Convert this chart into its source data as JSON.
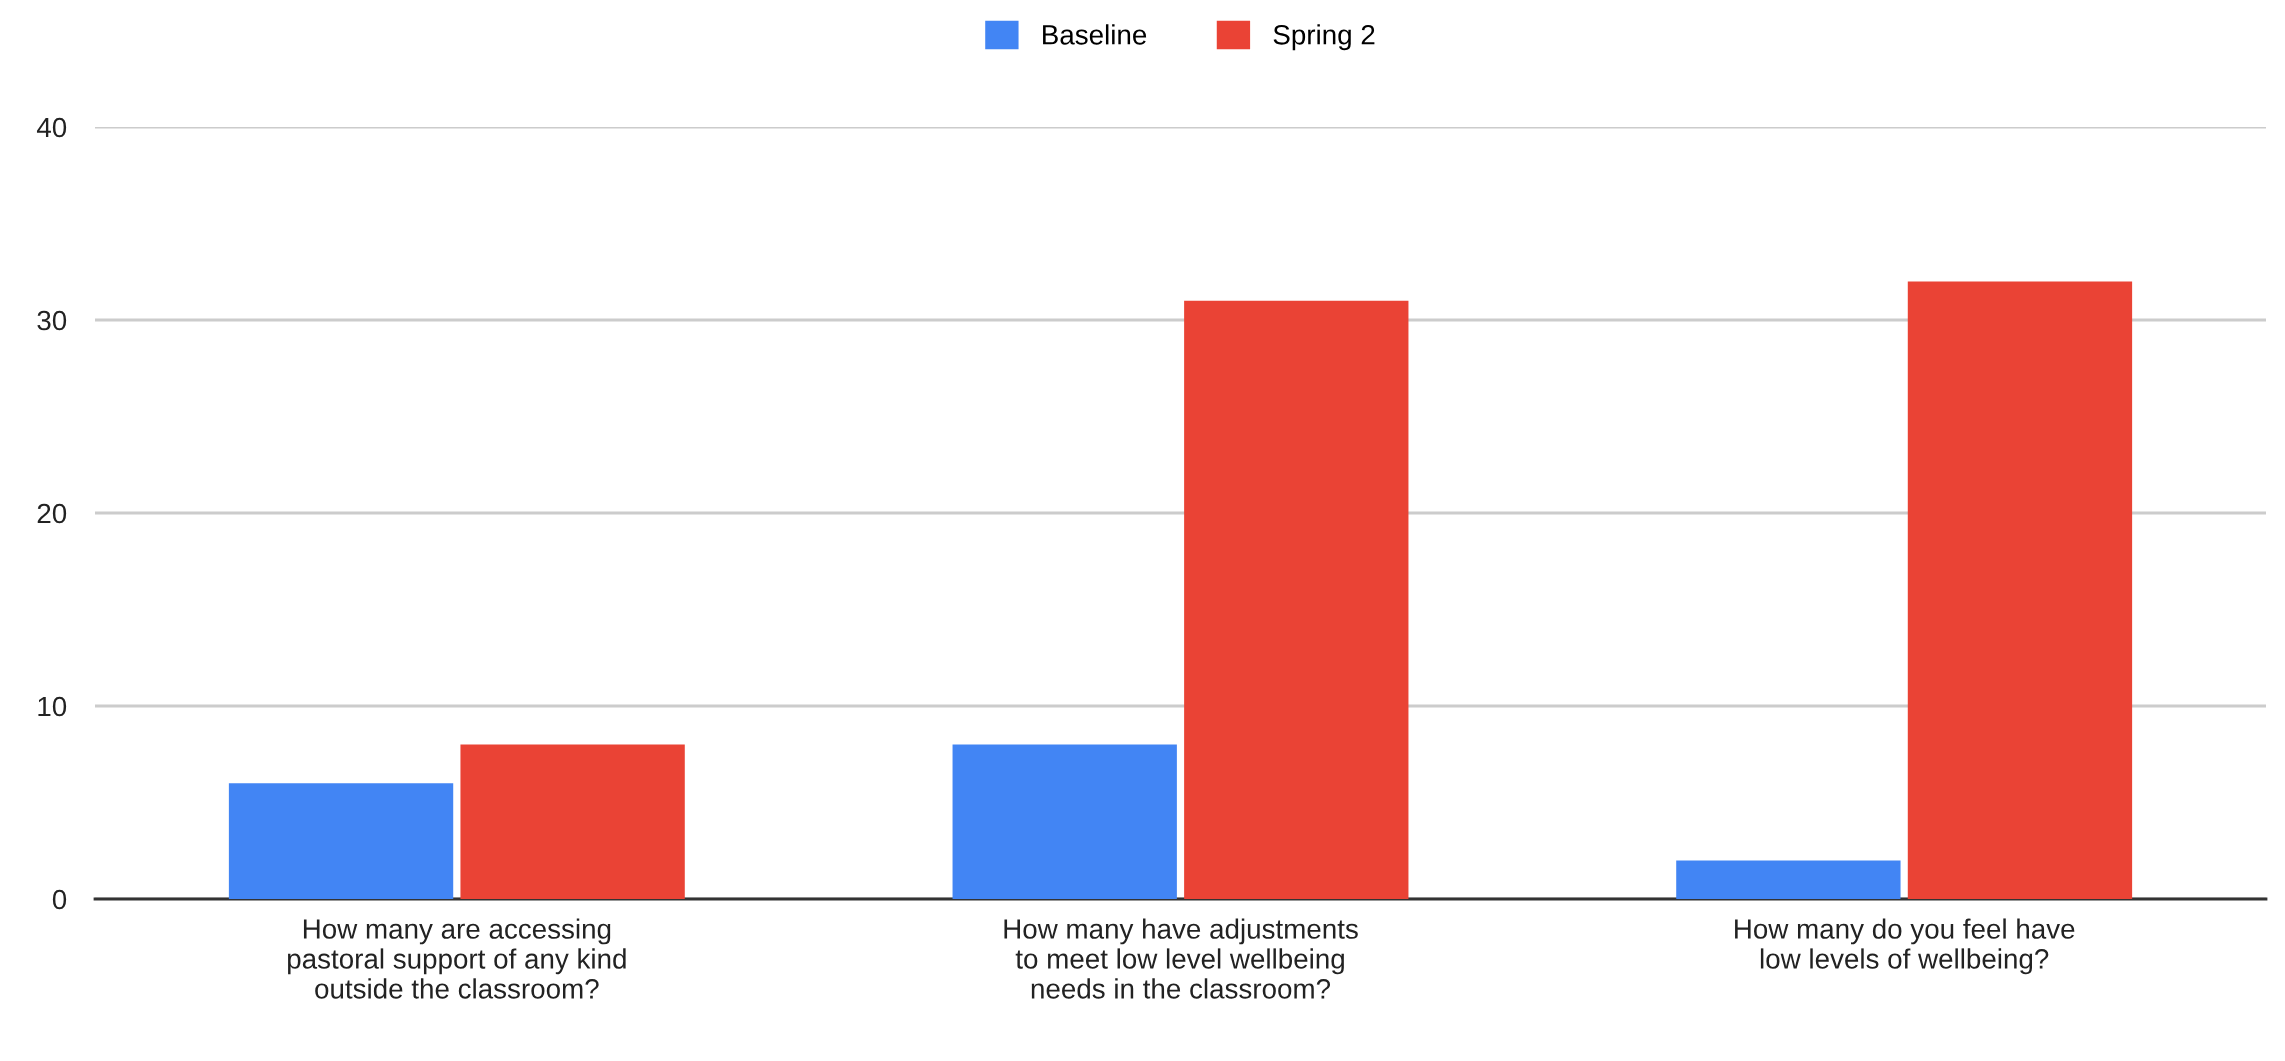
{
  "chart_data": {
    "type": "bar",
    "categories": [
      "How many are accessing\npastoral support of any kind\noutside the classroom?",
      "How many have adjustments\nto meet low level wellbeing\nneeds in the classroom?",
      "How many do you feel have\nlow levels of wellbeing?"
    ],
    "series": [
      {
        "name": "Baseline",
        "color": "#4285f4",
        "values": [
          6,
          8,
          2
        ]
      },
      {
        "name": "Spring 2",
        "color": "#ea4335",
        "values": [
          8,
          31,
          32
        ]
      }
    ],
    "ylim": [
      0,
      40
    ],
    "yticks": [
      0,
      10,
      20,
      30,
      40
    ],
    "grid": "y",
    "legend": "top"
  }
}
